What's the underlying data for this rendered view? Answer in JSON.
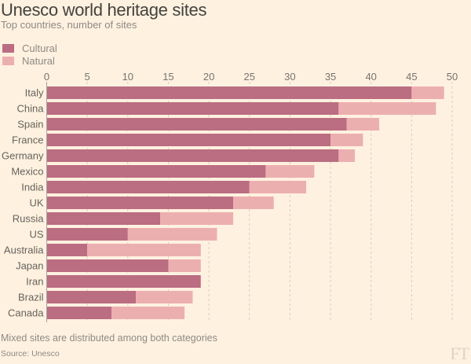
{
  "title": "Unesco world heritage sites",
  "subtitle": "Top countries, number of sites",
  "footnote": "Mixed sites are distributed among both categories",
  "source": "Source: Unesco",
  "logo": "FT",
  "chart_data": {
    "type": "bar",
    "orientation": "horizontal",
    "stacked": true,
    "title": "Unesco world heritage sites",
    "subtitle": "Top countries, number of sites",
    "xlabel": "",
    "ylabel": "",
    "xlim": [
      0,
      50
    ],
    "xticks": [
      0,
      5,
      10,
      15,
      20,
      25,
      30,
      35,
      40,
      45,
      50
    ],
    "grid": true,
    "legend_position": "top-left",
    "categories": [
      "Italy",
      "China",
      "Spain",
      "France",
      "Germany",
      "Mexico",
      "India",
      "UK",
      "Russia",
      "US",
      "Australia",
      "Japan",
      "Iran",
      "Brazil",
      "Canada"
    ],
    "series": [
      {
        "name": "Cultural",
        "color": "#bb6d82",
        "values": [
          45,
          36,
          37,
          35,
          36,
          27,
          25,
          23,
          14,
          10,
          5,
          15,
          19,
          11,
          8
        ]
      },
      {
        "name": "Natural",
        "color": "#ecafaf",
        "values": [
          4,
          12,
          4,
          4,
          2,
          6,
          7,
          5,
          9,
          11,
          14,
          4,
          0,
          7,
          9
        ]
      }
    ]
  }
}
